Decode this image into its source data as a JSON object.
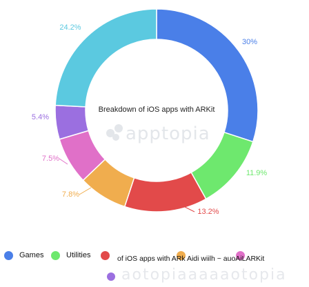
{
  "chart_data": {
    "type": "pie",
    "title": "Breakdown of iOS apps with ARKit",
    "slices": [
      {
        "label": "Games",
        "value": 30,
        "pct_label": "30%",
        "color": "#4a7fe8"
      },
      {
        "label": "Utilities",
        "value": 11.9,
        "pct_label": "11.9%",
        "color": "#6ee86e"
      },
      {
        "label": "",
        "value": 13.2,
        "pct_label": "13.2%",
        "color": "#e24a4a"
      },
      {
        "label": "",
        "value": 7.8,
        "pct_label": "7.8%",
        "color": "#f0ad4e"
      },
      {
        "label": "",
        "value": 7.5,
        "pct_label": "7.5%",
        "color": "#e070c8"
      },
      {
        "label": "",
        "value": 5.4,
        "pct_label": "5.4%",
        "color": "#9b6fe0"
      },
      {
        "label": "",
        "value": 24.2,
        "pct_label": "24.2%",
        "color": "#5bc9e0"
      }
    ],
    "legend_placement": "bottom"
  },
  "watermark": {
    "text": "apptopia",
    "bottom_text": "aotopiaaaaaotopia"
  },
  "legend_overlap_text": "of iOS apps with ARk Aidi wiilh ~ auoAiLARKit"
}
